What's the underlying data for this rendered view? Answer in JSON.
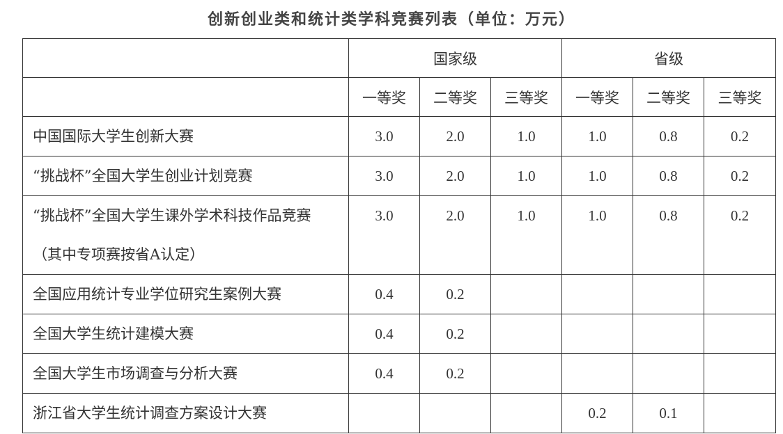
{
  "title": "创新创业类和统计类学科竞赛列表（单位：万元）",
  "headers": {
    "national": "国家级",
    "provincial": "省级",
    "prizes": [
      "一等奖",
      "二等奖",
      "三等奖",
      "一等奖",
      "二等奖",
      "三等奖"
    ]
  },
  "rows": [
    {
      "name": "中国国际大学生创新大赛",
      "values": [
        "3.0",
        "2.0",
        "1.0",
        "1.0",
        "0.8",
        "0.2"
      ]
    },
    {
      "name": "“挑战杯”全国大学生创业计划竞赛",
      "values": [
        "3.0",
        "2.0",
        "1.0",
        "1.0",
        "0.8",
        "0.2"
      ]
    },
    {
      "name": "“挑战杯”全国大学生课外学术科技作品竞赛（其中专项赛按省A认定）",
      "values": [
        "3.0",
        "2.0",
        "1.0",
        "1.0",
        "0.8",
        "0.2"
      ]
    },
    {
      "name": "全国应用统计专业学位研究生案例大赛",
      "values": [
        "0.4",
        "0.2",
        "",
        "",
        "",
        ""
      ]
    },
    {
      "name": "全国大学生统计建模大赛",
      "values": [
        "0.4",
        "0.2",
        "",
        "",
        "",
        ""
      ]
    },
    {
      "name": "全国大学生市场调查与分析大赛",
      "values": [
        "0.4",
        "0.2",
        "",
        "",
        "",
        ""
      ]
    },
    {
      "name": "浙江省大学生统计调查方案设计大赛",
      "values": [
        "",
        "",
        "",
        "0.2",
        "0.1",
        ""
      ]
    }
  ]
}
